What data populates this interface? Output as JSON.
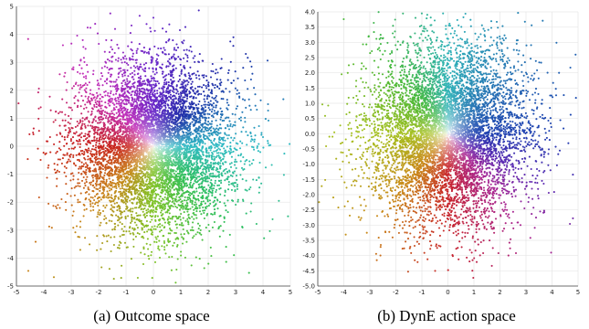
{
  "chart_data": [
    {
      "type": "scatter",
      "title": "",
      "caption": "(a) Outcome space",
      "xlabel": "",
      "ylabel": "",
      "xlim": [
        -5,
        5
      ],
      "ylim": [
        -5,
        5
      ],
      "xticks": [
        -5,
        -4,
        -3,
        -2,
        -1,
        0,
        1,
        2,
        3,
        4,
        5
      ],
      "yticks": [
        -5,
        -4,
        -3,
        -2,
        -1,
        0,
        1,
        2,
        3,
        4,
        5
      ],
      "grid": true,
      "legend": "none",
      "color_encoding": "hue by angle around origin, lightness by radius (white center)",
      "distribution": {
        "shape": "2D Gaussian cloud",
        "center": [
          0,
          0
        ],
        "std": [
          1.45,
          1.45
        ],
        "approx_points": 7000
      },
      "hue_anchors": [
        {
          "direction": "right",
          "color": "#2fbcc4"
        },
        {
          "direction": "upper-right",
          "color": "#1d2fa8"
        },
        {
          "direction": "up",
          "color": "#6a27c9"
        },
        {
          "direction": "upper-left",
          "color": "#c32fb8"
        },
        {
          "direction": "left",
          "color": "#c8231c"
        },
        {
          "direction": "lower-left",
          "color": "#c8861a"
        },
        {
          "direction": "down",
          "color": "#7fc327"
        },
        {
          "direction": "lower-right",
          "color": "#2fbf5a"
        }
      ]
    },
    {
      "type": "scatter",
      "title": "",
      "caption": "(b) DynE action space",
      "xlabel": "",
      "ylabel": "",
      "xlim": [
        -5,
        5
      ],
      "ylim": [
        -5,
        4
      ],
      "xticks": [
        -5,
        -4,
        -3,
        -2,
        -1,
        0,
        1,
        2,
        3,
        4,
        5
      ],
      "yticks": [
        -5.0,
        -4.5,
        -4.0,
        -3.5,
        -3.0,
        -2.5,
        -2.0,
        -1.5,
        -1.0,
        -0.5,
        0.0,
        0.5,
        1.0,
        1.5,
        2.0,
        2.5,
        3.0,
        3.5,
        4.0
      ],
      "ytick_labels": [
        "-5.0",
        "-4.5",
        "-4.0",
        "-3.5",
        "-3.0",
        "-2.5",
        "-2.0",
        "-1.5",
        "-1.0",
        "-0.5",
        "0.0",
        "0.5",
        "1.0",
        "1.5",
        "2.0",
        "2.5",
        "3.0",
        "3.5",
        "4.0"
      ],
      "grid": true,
      "legend": "none",
      "color_encoding": "hue by angle around origin, lightness by radius (white center)",
      "distribution": {
        "shape": "2D Gaussian cloud",
        "center": [
          0,
          0
        ],
        "std": [
          1.5,
          1.45
        ],
        "approx_points": 7000
      },
      "hue_anchors": [
        {
          "direction": "right",
          "color": "#1d3fb0"
        },
        {
          "direction": "up",
          "color": "#2fb3b8"
        },
        {
          "direction": "upper-left",
          "color": "#44b83a"
        },
        {
          "direction": "left",
          "color": "#a6c020"
        },
        {
          "direction": "lower-left",
          "color": "#c98a18"
        },
        {
          "direction": "down",
          "color": "#c8242a"
        },
        {
          "direction": "lower-right",
          "color": "#a82795"
        },
        {
          "direction": "right-down",
          "color": "#5a2bb3"
        }
      ]
    }
  ]
}
